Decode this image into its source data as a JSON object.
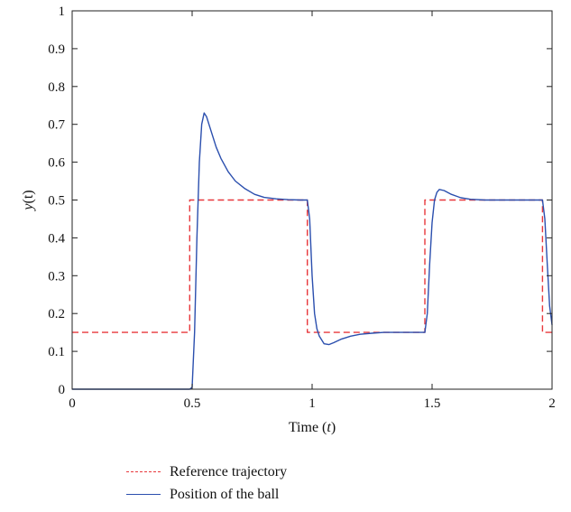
{
  "chart_data": {
    "type": "line",
    "xlabel": "Time (",
    "xlabel_var": "t",
    "xlabel_end": ")",
    "ylabel": "y",
    "ylabel_arg": "(t)",
    "xlim": [
      0,
      2
    ],
    "ylim": [
      0,
      1
    ],
    "xticks": [
      0,
      0.5,
      1,
      1.5,
      2
    ],
    "xtick_labels": [
      "0",
      "0.5",
      "1",
      "1.5",
      "2"
    ],
    "yticks": [
      0,
      0.1,
      0.2,
      0.3,
      0.4,
      0.5,
      0.6,
      0.7,
      0.8,
      0.9,
      1
    ],
    "ytick_labels": [
      "0",
      "0.1",
      "0.2",
      "0.3",
      "0.4",
      "0.5",
      "0.6",
      "0.7",
      "0.8",
      "0.9",
      "1"
    ],
    "grid": false,
    "legend_position": "below",
    "series": [
      {
        "name": "Reference trajectory",
        "color": "#e8383c",
        "style": "dashed",
        "x": [
          0,
          0.49,
          0.49,
          0.98,
          0.98,
          1.47,
          1.47,
          1.96,
          1.96,
          2.0
        ],
        "y": [
          0.15,
          0.15,
          0.5,
          0.5,
          0.15,
          0.15,
          0.5,
          0.5,
          0.15,
          0.15
        ]
      },
      {
        "name": "Position of the ball",
        "color": "#2b4fae",
        "style": "solid",
        "x": [
          0,
          0.49,
          0.5,
          0.51,
          0.52,
          0.53,
          0.54,
          0.55,
          0.56,
          0.58,
          0.6,
          0.62,
          0.65,
          0.68,
          0.72,
          0.76,
          0.8,
          0.85,
          0.9,
          0.95,
          0.98,
          0.99,
          1.0,
          1.01,
          1.02,
          1.03,
          1.05,
          1.07,
          1.09,
          1.12,
          1.16,
          1.2,
          1.25,
          1.3,
          1.35,
          1.4,
          1.47,
          1.48,
          1.49,
          1.5,
          1.51,
          1.52,
          1.53,
          1.55,
          1.58,
          1.62,
          1.66,
          1.72,
          1.8,
          1.88,
          1.96,
          1.97,
          1.98,
          1.99,
          2.0
        ],
        "y": [
          0,
          0,
          0.005,
          0.15,
          0.4,
          0.6,
          0.7,
          0.73,
          0.72,
          0.68,
          0.64,
          0.61,
          0.575,
          0.55,
          0.53,
          0.515,
          0.507,
          0.503,
          0.501,
          0.5,
          0.5,
          0.45,
          0.3,
          0.2,
          0.16,
          0.14,
          0.12,
          0.118,
          0.123,
          0.132,
          0.14,
          0.145,
          0.148,
          0.15,
          0.15,
          0.15,
          0.15,
          0.2,
          0.33,
          0.44,
          0.5,
          0.52,
          0.528,
          0.525,
          0.515,
          0.506,
          0.502,
          0.5,
          0.5,
          0.5,
          0.5,
          0.45,
          0.33,
          0.22,
          0.17
        ]
      }
    ]
  }
}
